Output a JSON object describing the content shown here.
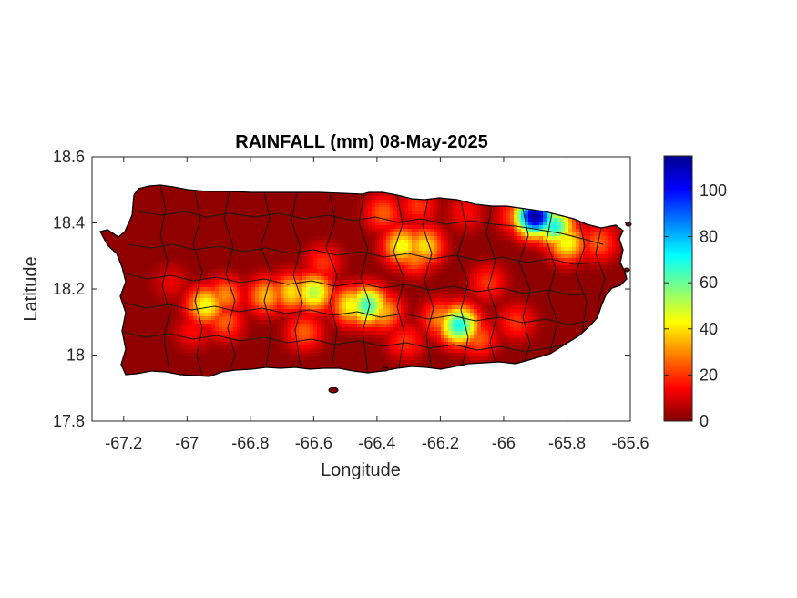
{
  "chart_data": {
    "type": "heatmap",
    "title": "RAINFALL (mm) 08-May-2025",
    "xlabel": "Longitude",
    "ylabel": "Latitude",
    "xlim": [
      -67.3,
      -65.6
    ],
    "ylim": [
      17.8,
      18.6
    ],
    "xticks": [
      -67.2,
      -67,
      -66.8,
      -66.6,
      -66.4,
      -66.2,
      -66,
      -65.8,
      -65.6
    ],
    "yticks": [
      17.8,
      18,
      18.2,
      18.4,
      18.6
    ],
    "grid": false,
    "colorbar": {
      "min": 0,
      "max": 115,
      "ticks": [
        0,
        20,
        40,
        60,
        80,
        100
      ],
      "colormap": "jet",
      "position": "right"
    },
    "base_value": 2,
    "hotspots": [
      {
        "lon": -65.9,
        "lat": 18.42,
        "value": 115
      },
      {
        "lon": -65.84,
        "lat": 18.39,
        "value": 70
      },
      {
        "lon": -65.8,
        "lat": 18.34,
        "value": 45
      },
      {
        "lon": -65.96,
        "lat": 18.42,
        "value": 25
      },
      {
        "lon": -65.7,
        "lat": 18.34,
        "value": 25
      },
      {
        "lon": -66.43,
        "lat": 18.15,
        "value": 65
      },
      {
        "lon": -66.48,
        "lat": 18.15,
        "value": 45
      },
      {
        "lon": -66.38,
        "lat": 18.13,
        "value": 35
      },
      {
        "lon": -66.14,
        "lat": 18.09,
        "value": 70
      },
      {
        "lon": -66.2,
        "lat": 18.11,
        "value": 30
      },
      {
        "lon": -66.08,
        "lat": 18.05,
        "value": 25
      },
      {
        "lon": -66.32,
        "lat": 18.33,
        "value": 45
      },
      {
        "lon": -66.25,
        "lat": 18.33,
        "value": 40
      },
      {
        "lon": -66.28,
        "lat": 18.3,
        "value": 30
      },
      {
        "lon": -66.6,
        "lat": 18.19,
        "value": 52
      },
      {
        "lon": -66.67,
        "lat": 18.19,
        "value": 40
      },
      {
        "lon": -66.75,
        "lat": 18.18,
        "value": 35
      },
      {
        "lon": -66.94,
        "lat": 18.15,
        "value": 45
      },
      {
        "lon": -66.88,
        "lat": 18.18,
        "value": 30
      },
      {
        "lon": -66.88,
        "lat": 18.1,
        "value": 25
      },
      {
        "lon": -66.38,
        "lat": 18.43,
        "value": 25
      },
      {
        "lon": -66.27,
        "lat": 18.45,
        "value": 20
      },
      {
        "lon": -66.57,
        "lat": 18.28,
        "value": 20
      },
      {
        "lon": -66.63,
        "lat": 18.07,
        "value": 25
      },
      {
        "lon": -66.31,
        "lat": 18.04,
        "value": 20
      },
      {
        "lon": -66.05,
        "lat": 18.22,
        "value": 20
      },
      {
        "lon": -66.12,
        "lat": 18.43,
        "value": 15
      },
      {
        "lon": -65.96,
        "lat": 18.1,
        "value": 20
      },
      {
        "lon": -66.98,
        "lat": 18.07,
        "value": 15
      },
      {
        "lon": -67.05,
        "lat": 18.22,
        "value": 12
      }
    ]
  }
}
